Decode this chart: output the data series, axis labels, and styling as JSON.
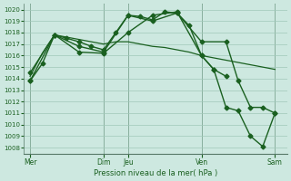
{
  "bg_color": "#cde8e0",
  "grid_color": "#a0c8b8",
  "line_color": "#1a6020",
  "title": "Pression niveau de la mer( hPa )",
  "ylim": [
    1007.5,
    1020.5
  ],
  "yticks": [
    1008,
    1009,
    1010,
    1011,
    1012,
    1013,
    1014,
    1015,
    1016,
    1017,
    1018,
    1019,
    1020
  ],
  "x_day_labels": [
    "Mer",
    "Dim",
    "Jeu",
    "Ven",
    "Sam"
  ],
  "x_day_positions": [
    0,
    12,
    16,
    28,
    40
  ],
  "xlim": [
    -1,
    42
  ],
  "vlines": [
    0,
    12,
    16,
    28,
    40
  ],
  "lines": [
    {
      "x": [
        0,
        2,
        4,
        6,
        8,
        10,
        12,
        14,
        16,
        18,
        20,
        22,
        24,
        26,
        28,
        30,
        32
      ],
      "y": [
        1013.8,
        1015.3,
        1017.8,
        1017.5,
        1017.2,
        1016.8,
        1016.5,
        1018.0,
        1019.5,
        1019.4,
        1019.1,
        1019.8,
        1019.7,
        1018.6,
        1016.0,
        1014.8,
        1014.2
      ],
      "marker": "D",
      "ms": 2.5,
      "lw": 1.0
    },
    {
      "x": [
        0,
        2,
        4,
        6,
        8,
        10,
        12,
        14,
        16,
        18,
        20,
        22,
        24,
        26,
        28,
        30,
        32,
        34,
        36,
        38,
        40
      ],
      "y": [
        1014.2,
        1016.2,
        1017.8,
        1017.6,
        1017.4,
        1017.2,
        1017.0,
        1017.2,
        1017.2,
        1017.0,
        1016.8,
        1016.7,
        1016.5,
        1016.3,
        1016.0,
        1015.8,
        1015.6,
        1015.4,
        1015.2,
        1015.0,
        1014.8
      ],
      "marker": null,
      "ms": 0,
      "lw": 0.9
    },
    {
      "x": [
        0,
        4,
        8,
        12,
        16,
        20,
        24,
        28,
        32,
        34,
        36,
        38,
        40
      ],
      "y": [
        1014.5,
        1017.8,
        1016.8,
        1016.3,
        1019.5,
        1019.0,
        1019.7,
        1017.2,
        1017.2,
        1013.8,
        1011.5,
        1011.5,
        1011.0
      ],
      "marker": "D",
      "ms": 2.5,
      "lw": 1.0
    },
    {
      "x": [
        0,
        4,
        8,
        12,
        16,
        20,
        24,
        28,
        30,
        32,
        34,
        36,
        38,
        40
      ],
      "y": [
        1013.8,
        1017.8,
        1016.3,
        1016.2,
        1018.0,
        1019.5,
        1019.8,
        1016.0,
        1014.8,
        1011.5,
        1011.2,
        1009.0,
        1008.1,
        1011.0
      ],
      "marker": "D",
      "ms": 2.5,
      "lw": 1.0
    }
  ]
}
